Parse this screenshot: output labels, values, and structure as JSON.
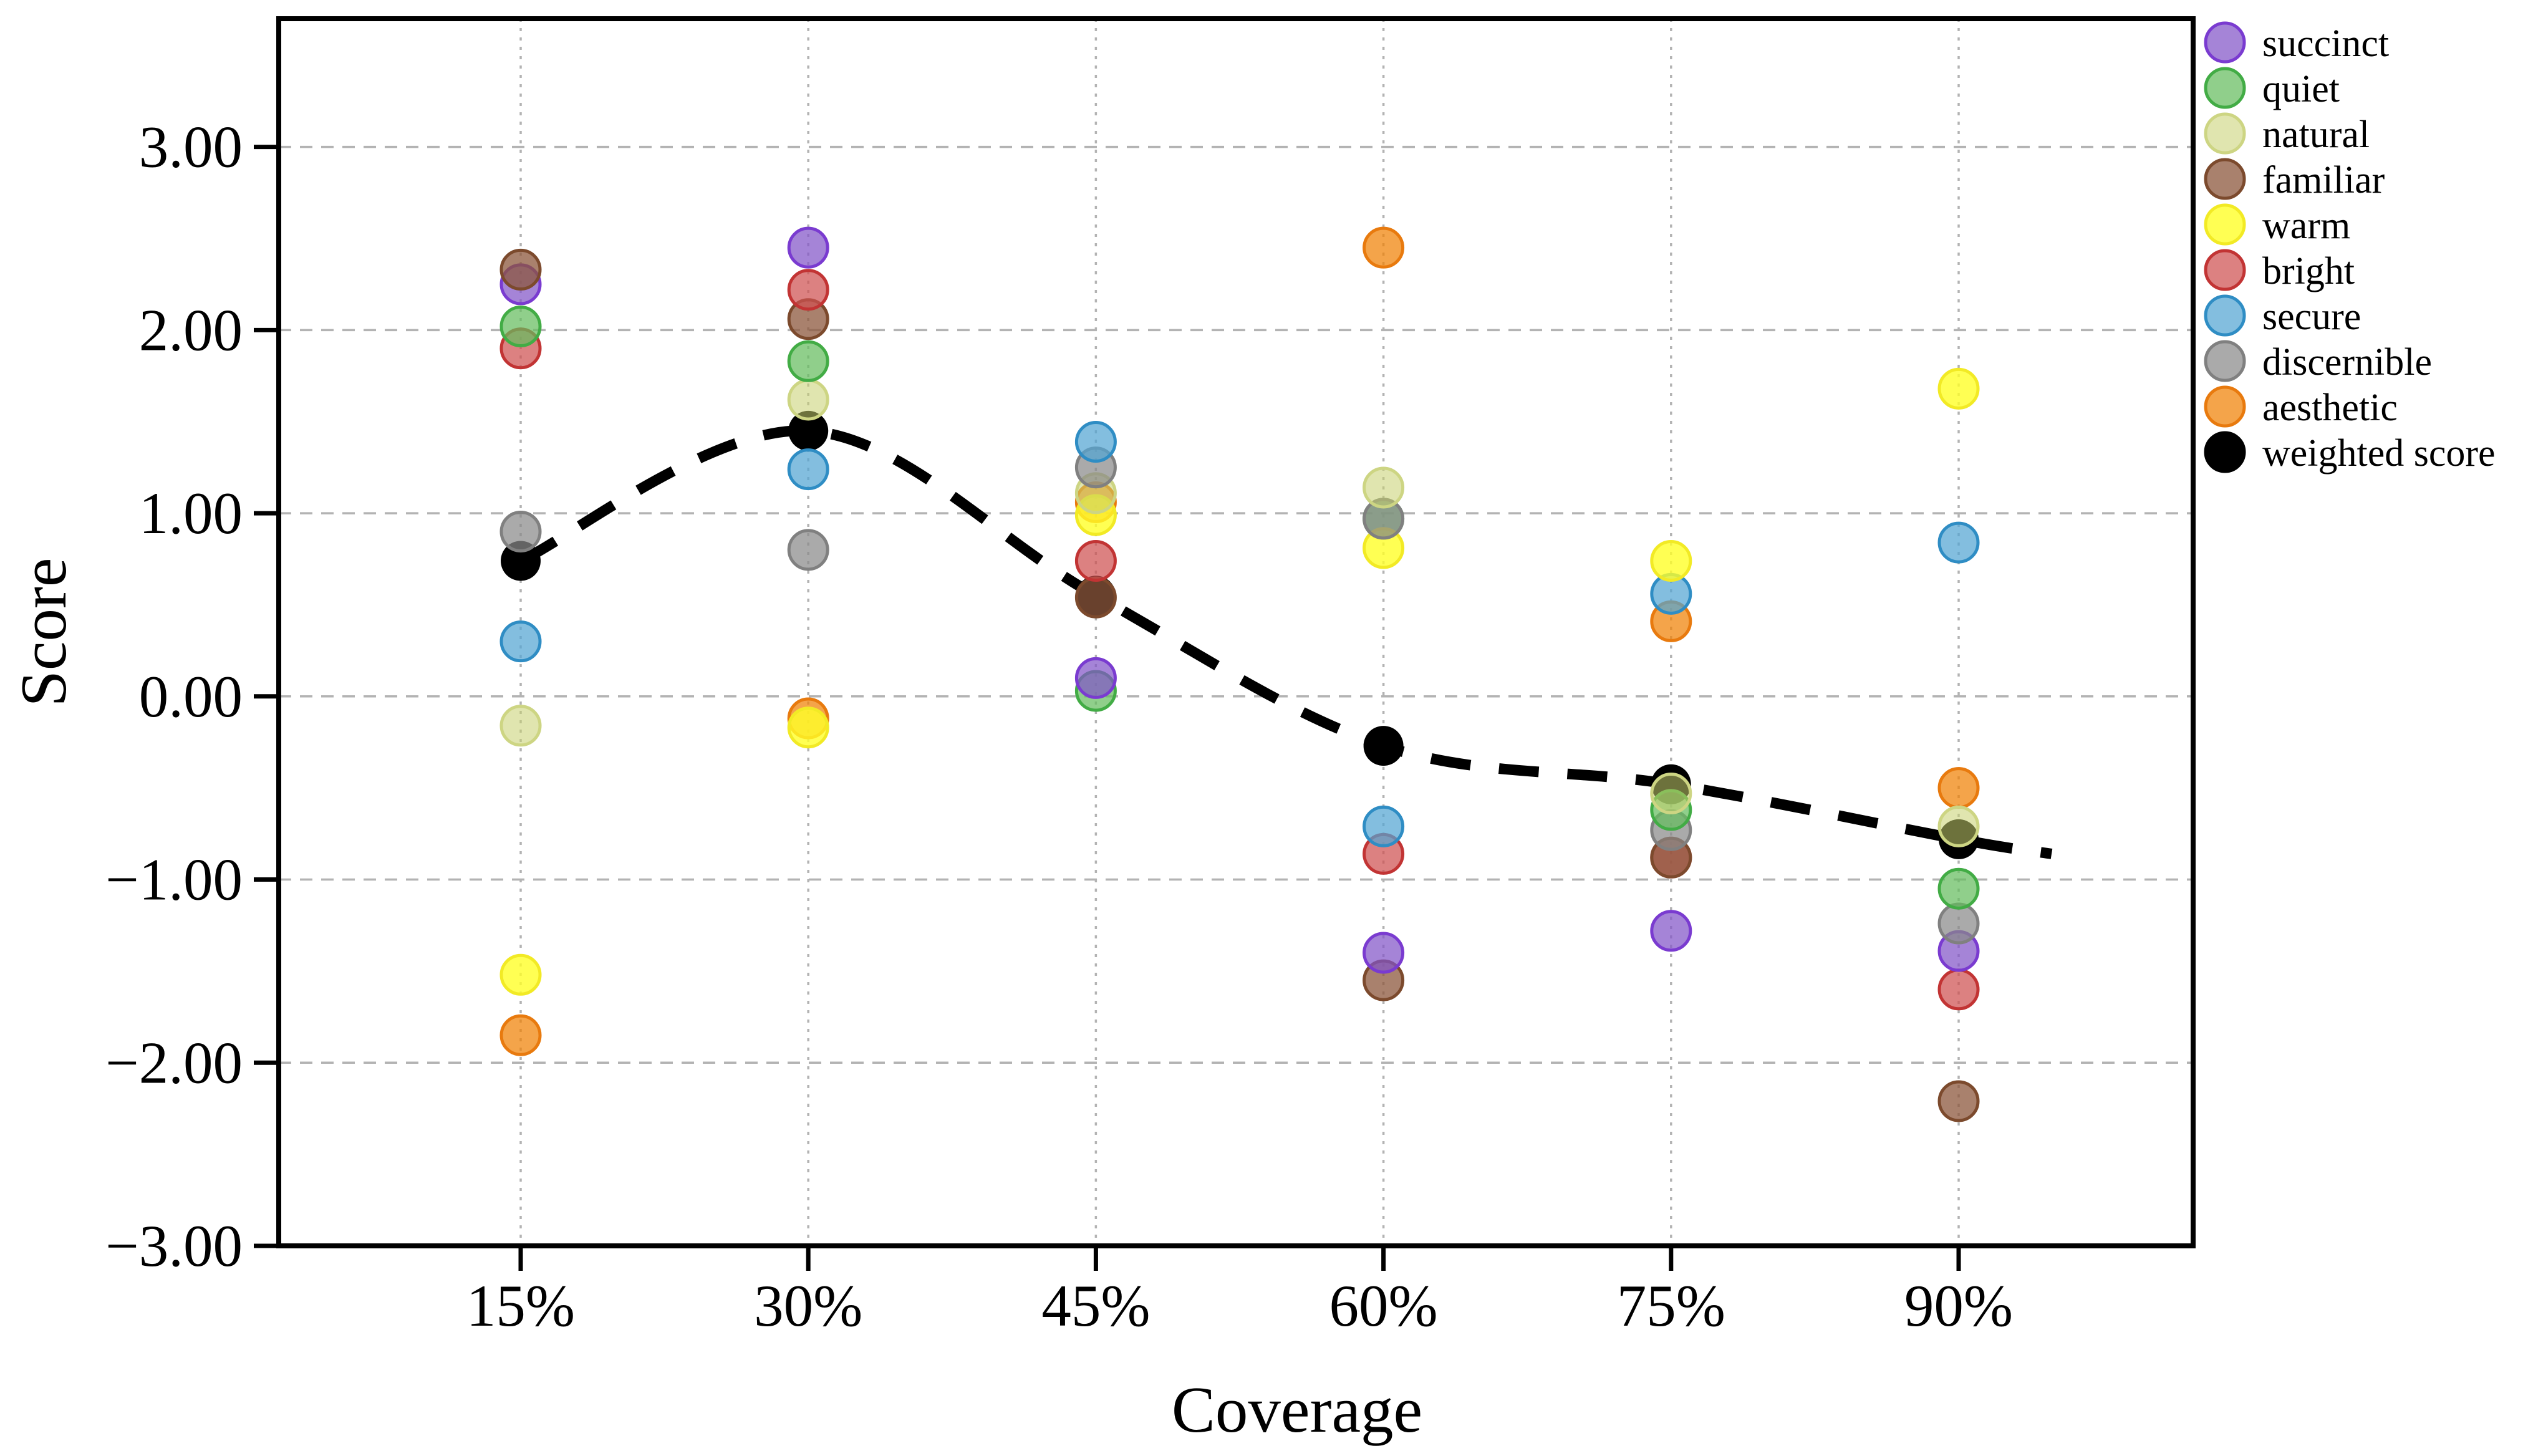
{
  "figure": {
    "background": "#ffffff"
  },
  "chart_data": {
    "type": "scatter",
    "title": "",
    "xlabel": "Coverage",
    "ylabel": "Score",
    "x_categories": [
      "15%",
      "30%",
      "45%",
      "60%",
      "75%",
      "90%"
    ],
    "y_tick_labels": [
      "3.00",
      "2.00",
      "1.00",
      "0.00",
      "−1.00",
      "−2.00",
      "−3.00"
    ],
    "y_tick_values": [
      3,
      2,
      1,
      0,
      -1,
      -2,
      -3
    ],
    "ylim": [
      -3,
      3.7
    ],
    "grid": true,
    "legend_position": "upper-right-outside",
    "series": [
      {
        "name": "succinct",
        "fill": "rgba(130,85,200,0.72)",
        "edge": "#7a3bd0",
        "values": [
          2.25,
          2.45,
          0.1,
          -1.4,
          -1.28,
          -1.39
        ]
      },
      {
        "name": "quiet",
        "fill": "rgba(101,189,94,0.72)",
        "edge": "#42ac45",
        "values": [
          2.02,
          1.83,
          0.03,
          0.97,
          -0.62,
          -1.05
        ]
      },
      {
        "name": "natural",
        "fill": "rgba(199,207,110,0.55)",
        "edge": "#cdd583",
        "values": [
          -0.16,
          1.62,
          1.11,
          1.14,
          -0.53,
          -0.71
        ]
      },
      {
        "name": "familiar",
        "fill": "rgba(140,87,60,0.75)",
        "edge": "#7c4a2d",
        "values": [
          2.33,
          2.06,
          0.54,
          -1.55,
          -0.88,
          -2.21
        ]
      },
      {
        "name": "warm",
        "fill": "rgba(255,255,40,0.80)",
        "edge": "#f2ea25",
        "values": [
          -1.52,
          -0.17,
          0.99,
          0.81,
          0.74,
          1.68
        ]
      },
      {
        "name": "bright",
        "fill": "rgba(207,80,80,0.72)",
        "edge": "#c23434",
        "values": [
          1.9,
          2.22,
          0.74,
          -0.86,
          -0.88,
          -1.6
        ]
      },
      {
        "name": "secure",
        "fill": "rgba(83,165,210,0.72)",
        "edge": "#2f8dc4",
        "values": [
          0.3,
          1.24,
          1.39,
          -0.71,
          0.56,
          0.84
        ]
      },
      {
        "name": "discernible",
        "fill": "rgba(137,137,137,0.72)",
        "edge": "#808080",
        "values": [
          0.9,
          0.8,
          1.25,
          0.97,
          -0.73,
          -1.24
        ]
      },
      {
        "name": "aesthetic",
        "fill": "rgba(240,129,4,0.72)",
        "edge": "#e87a0e",
        "values": [
          -1.85,
          -0.12,
          1.06,
          2.45,
          0.41,
          -0.5
        ]
      }
    ],
    "weighted": {
      "name": "weighted score",
      "color": "#000000",
      "line_style": "dashed",
      "values": [
        0.74,
        1.45,
        0.55,
        -0.27,
        -0.48,
        -0.78
      ],
      "line_tail_end_value": -0.86
    },
    "occlusion_draw_order": [
      [
        "aesthetic",
        "warm",
        "natural",
        "secure",
        "discernible",
        "bright",
        "quiet",
        "succinct",
        "familiar"
      ],
      [
        "aesthetic",
        "warm",
        "discernible",
        "secure",
        "natural",
        "quiet",
        "familiar",
        "bright",
        "succinct"
      ],
      [
        "aesthetic",
        "quiet",
        "succinct",
        "familiar",
        "bright",
        "warm",
        "natural",
        "discernible",
        "secure"
      ],
      [
        "aesthetic",
        "familiar",
        "succinct",
        "bright",
        "secure",
        "quiet",
        "warm",
        "discernible",
        "natural"
      ],
      [
        "aesthetic",
        "bright",
        "succinct",
        "familiar",
        "discernible",
        "quiet",
        "natural",
        "secure",
        "warm"
      ],
      [
        "aesthetic",
        "familiar",
        "bright",
        "succinct",
        "discernible",
        "quiet",
        "natural",
        "secure",
        "warm"
      ]
    ],
    "style": {
      "grid_color": "#b3b3b3",
      "spine_color": "#000000",
      "point_radius": 31,
      "weighted_point_radius": 32,
      "dash_line_width": 17
    }
  }
}
